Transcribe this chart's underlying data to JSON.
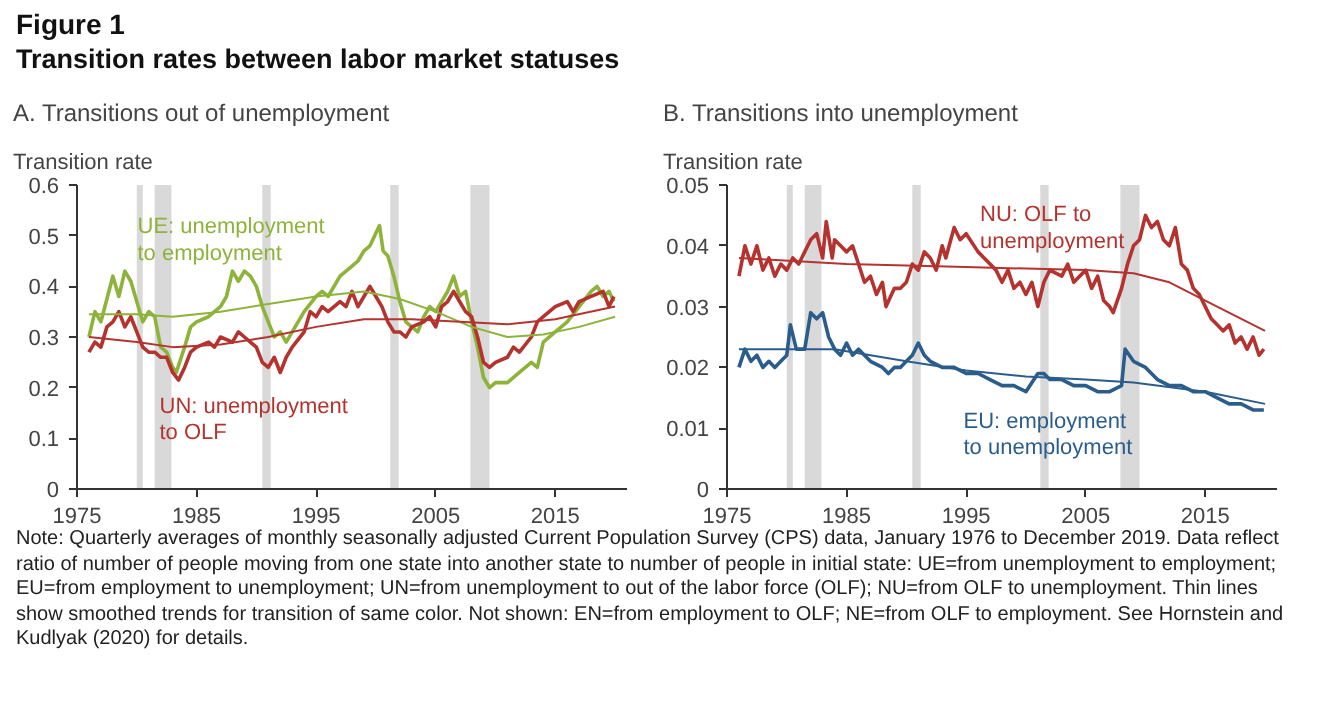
{
  "chart_data": [
    {
      "type": "line",
      "title": "A. Transitions out of unemployment",
      "ylabel": "Transition rate",
      "xlim": [
        1975,
        2021
      ],
      "xticks": [
        1975,
        1985,
        1995,
        2005,
        2015
      ],
      "ylim": [
        0,
        0.6
      ],
      "yticks": [
        0,
        0.1,
        0.2,
        0.3,
        0.4,
        0.5,
        0.6
      ],
      "grid": false,
      "legend": false,
      "annotations": [
        "Figure 1",
        "Transition rates between labor market statuses",
        "Note: Quarterly averages of monthly seasonally adjusted Current Population Survey (CPS) data, January 1976 to December 2019. Data reflect ratio of number of people moving from one state into another state to number of people in initial state: UE=from unemployment to employment; EU=from employment to unemployment; UN=from unemployment to out of the labor force (OLF); NU=from OLF to unemployment. Thin lines show smoothed trends for transition of same color. Not shown: EN=from employment to OLF; NE=from OLF to employment. See Hornstein and Kudlyak (2020) for details."
      ],
      "bands": [
        {
          "axis": "x",
          "from": 1980.0,
          "to": 1980.5,
          "color": "#d9d9d9"
        },
        {
          "axis": "x",
          "from": 1981.5,
          "to": 1982.9,
          "color": "#d9d9d9"
        },
        {
          "axis": "x",
          "from": 1990.5,
          "to": 1991.2,
          "color": "#d9d9d9"
        },
        {
          "axis": "x",
          "from": 2001.2,
          "to": 2001.9,
          "color": "#d9d9d9"
        },
        {
          "axis": "x",
          "from": 2007.9,
          "to": 2009.5,
          "color": "#d9d9d9"
        }
      ],
      "series": [
        {
          "name": "UE: unemployment to employment",
          "color": "#8db33a",
          "x": [
            1976,
            1976.5,
            1977,
            1978,
            1978.5,
            1979,
            1979.5,
            1980,
            1980.5,
            1981,
            1981.5,
            1982,
            1982.5,
            1983,
            1983.3,
            1984,
            1984.5,
            1985,
            1986,
            1987,
            1987.5,
            1988,
            1988.5,
            1989,
            1989.5,
            1990,
            1990.5,
            1991,
            1991.5,
            1992,
            1992.5,
            1993,
            1994,
            1995,
            1995.5,
            1996,
            1997,
            1998,
            1998.5,
            1999,
            1999.5,
            2000.3,
            2000.6,
            2001,
            2001.5,
            2002,
            2002.5,
            2003,
            2003.5,
            2004,
            2004.5,
            2005,
            2005.5,
            2006,
            2006.5,
            2007,
            2007.5,
            2008,
            2008.5,
            2009,
            2009.5,
            2010,
            2011,
            2012,
            2013,
            2013.5,
            2014,
            2015,
            2016,
            2017,
            2018,
            2018.5,
            2019,
            2019.5,
            2019.9
          ],
          "values": [
            0.3,
            0.35,
            0.33,
            0.42,
            0.38,
            0.43,
            0.41,
            0.37,
            0.33,
            0.35,
            0.34,
            0.28,
            0.27,
            0.24,
            0.23,
            0.28,
            0.32,
            0.33,
            0.34,
            0.36,
            0.38,
            0.43,
            0.41,
            0.43,
            0.42,
            0.4,
            0.36,
            0.33,
            0.3,
            0.31,
            0.29,
            0.31,
            0.35,
            0.38,
            0.39,
            0.38,
            0.42,
            0.44,
            0.45,
            0.47,
            0.48,
            0.52,
            0.47,
            0.46,
            0.42,
            0.37,
            0.33,
            0.32,
            0.31,
            0.34,
            0.36,
            0.35,
            0.37,
            0.39,
            0.42,
            0.38,
            0.39,
            0.33,
            0.28,
            0.22,
            0.2,
            0.21,
            0.21,
            0.23,
            0.25,
            0.24,
            0.29,
            0.31,
            0.33,
            0.36,
            0.39,
            0.4,
            0.38,
            0.39,
            0.37
          ]
        },
        {
          "name": "UN: unemployment to OLF",
          "color": "#b5332f",
          "x": [
            1976,
            1976.5,
            1977,
            1977.5,
            1978,
            1978.5,
            1979,
            1979.5,
            1980,
            1980.5,
            1981,
            1981.5,
            1982,
            1982.5,
            1983,
            1983.5,
            1984,
            1984.5,
            1985,
            1986,
            1986.5,
            1987,
            1988,
            1988.5,
            1989,
            1989.5,
            1990,
            1990.5,
            1991,
            1991.5,
            1992,
            1992.5,
            1993,
            1994,
            1994.5,
            1995,
            1995.5,
            1996,
            1997,
            1997.5,
            1998,
            1998.5,
            1999,
            1999.5,
            2000,
            2000.5,
            2001,
            2001.5,
            2002,
            2002.5,
            2003,
            2004,
            2004.5,
            2005,
            2005.5,
            2006,
            2006.5,
            2007,
            2007.5,
            2008,
            2008.5,
            2009,
            2009.5,
            2010,
            2011,
            2011.5,
            2012,
            2013,
            2013.5,
            2014,
            2015,
            2016,
            2016.5,
            2017,
            2018,
            2019,
            2019.5,
            2019.9
          ],
          "values": [
            0.27,
            0.29,
            0.28,
            0.32,
            0.33,
            0.35,
            0.32,
            0.34,
            0.31,
            0.28,
            0.27,
            0.27,
            0.26,
            0.26,
            0.23,
            0.215,
            0.24,
            0.27,
            0.28,
            0.29,
            0.28,
            0.3,
            0.29,
            0.31,
            0.3,
            0.29,
            0.28,
            0.25,
            0.24,
            0.26,
            0.23,
            0.26,
            0.28,
            0.31,
            0.35,
            0.34,
            0.36,
            0.35,
            0.37,
            0.36,
            0.39,
            0.36,
            0.38,
            0.4,
            0.38,
            0.36,
            0.33,
            0.31,
            0.31,
            0.3,
            0.32,
            0.33,
            0.34,
            0.32,
            0.36,
            0.37,
            0.39,
            0.37,
            0.35,
            0.34,
            0.3,
            0.25,
            0.24,
            0.25,
            0.26,
            0.28,
            0.27,
            0.3,
            0.33,
            0.34,
            0.36,
            0.37,
            0.35,
            0.37,
            0.38,
            0.39,
            0.36,
            0.38
          ]
        },
        {
          "color": "#8db33a",
          "x": [
            1976,
            1980,
            1983,
            1987,
            1991,
            1995,
            1999,
            2002,
            2005,
            2008,
            2011,
            2014,
            2017,
            2020
          ],
          "values": [
            0.345,
            0.345,
            0.34,
            0.35,
            0.365,
            0.38,
            0.39,
            0.375,
            0.35,
            0.32,
            0.3,
            0.305,
            0.32,
            0.34
          ]
        },
        {
          "color": "#b5332f",
          "x": [
            1976,
            1980,
            1983,
            1987,
            1991,
            1995,
            1999,
            2003,
            2007,
            2011,
            2015,
            2020
          ],
          "values": [
            0.3,
            0.29,
            0.28,
            0.285,
            0.3,
            0.32,
            0.335,
            0.335,
            0.33,
            0.325,
            0.335,
            0.36
          ]
        }
      ]
    },
    {
      "type": "line",
      "title": "B. Transitions into unemployment",
      "ylabel": "Transition rate",
      "xlim": [
        1975,
        2021
      ],
      "xticks": [
        1975,
        1985,
        1995,
        2005,
        2015
      ],
      "ylim": [
        0,
        0.05
      ],
      "yticks": [
        0,
        0.01,
        0.02,
        0.03,
        0.04,
        0.05
      ],
      "grid": false,
      "legend": false,
      "bands": [
        {
          "axis": "x",
          "from": 1980.0,
          "to": 1980.5,
          "color": "#d9d9d9"
        },
        {
          "axis": "x",
          "from": 1981.5,
          "to": 1982.9,
          "color": "#d9d9d9"
        },
        {
          "axis": "x",
          "from": 1990.5,
          "to": 1991.2,
          "color": "#d9d9d9"
        },
        {
          "axis": "x",
          "from": 2001.2,
          "to": 2001.9,
          "color": "#d9d9d9"
        },
        {
          "axis": "x",
          "from": 2007.9,
          "to": 2009.5,
          "color": "#d9d9d9"
        }
      ],
      "series": [
        {
          "name": "NU: OLF to unemployment",
          "color": "#b5332f",
          "x": [
            1976,
            1976.5,
            1977,
            1977.5,
            1978,
            1978.5,
            1979,
            1979.5,
            1980,
            1980.5,
            1981,
            1981.5,
            1982,
            1982.5,
            1983,
            1983.3,
            1983.8,
            1984,
            1984.5,
            1985,
            1985.5,
            1986,
            1986.5,
            1987,
            1987.5,
            1988,
            1988.3,
            1989,
            1989.5,
            1990,
            1990.5,
            1991,
            1991.5,
            1992,
            1992.5,
            1993,
            1993.3,
            1994,
            1994.5,
            1995,
            1996,
            1996.5,
            1997,
            1997.5,
            1998,
            1998.5,
            1999,
            1999.5,
            2000,
            2000.5,
            2001,
            2001.5,
            2002,
            2003,
            2003.5,
            2004,
            2005,
            2005.5,
            2006,
            2006.5,
            2007,
            2007.3,
            2008,
            2008.5,
            2009,
            2009.5,
            2010,
            2010.5,
            2011,
            2011.5,
            2012,
            2012.5,
            2013,
            2013.5,
            2014,
            2014.5,
            2015,
            2015.5,
            2016,
            2016.5,
            2017,
            2017.5,
            2018,
            2018.5,
            2019,
            2019.5,
            2019.9
          ],
          "values": [
            0.035,
            0.04,
            0.037,
            0.04,
            0.036,
            0.038,
            0.035,
            0.037,
            0.036,
            0.038,
            0.037,
            0.039,
            0.041,
            0.042,
            0.038,
            0.044,
            0.038,
            0.041,
            0.04,
            0.039,
            0.04,
            0.037,
            0.034,
            0.035,
            0.032,
            0.034,
            0.03,
            0.033,
            0.033,
            0.034,
            0.037,
            0.036,
            0.039,
            0.038,
            0.036,
            0.04,
            0.038,
            0.043,
            0.041,
            0.042,
            0.039,
            0.038,
            0.037,
            0.036,
            0.034,
            0.036,
            0.033,
            0.034,
            0.032,
            0.034,
            0.03,
            0.034,
            0.036,
            0.035,
            0.037,
            0.034,
            0.036,
            0.033,
            0.035,
            0.031,
            0.03,
            0.029,
            0.033,
            0.037,
            0.04,
            0.041,
            0.045,
            0.043,
            0.044,
            0.041,
            0.04,
            0.043,
            0.037,
            0.036,
            0.033,
            0.032,
            0.03,
            0.028,
            0.027,
            0.026,
            0.027,
            0.024,
            0.025,
            0.023,
            0.025,
            0.022,
            0.023
          ]
        },
        {
          "name": "EU: employment to unemployment",
          "color": "#2b5d8c",
          "x": [
            1976,
            1976.5,
            1977,
            1977.5,
            1978,
            1978.5,
            1979,
            1979.5,
            1980,
            1980.3,
            1980.8,
            1981.5,
            1982,
            1982.5,
            1983,
            1983.5,
            1984,
            1984.5,
            1985,
            1985.5,
            1986,
            1986.5,
            1987,
            1988,
            1988.5,
            1989,
            1989.5,
            1990,
            1990.5,
            1991,
            1991.5,
            1992,
            1993,
            1994,
            1995,
            1996,
            1997,
            1998,
            1999,
            2000,
            2001,
            2001.5,
            2002,
            2003,
            2004,
            2005,
            2006,
            2007,
            2008,
            2008.3,
            2009,
            2010,
            2011,
            2012,
            2013,
            2014,
            2015,
            2016,
            2017,
            2018,
            2019,
            2019.9
          ],
          "values": [
            0.02,
            0.023,
            0.021,
            0.022,
            0.02,
            0.021,
            0.02,
            0.021,
            0.022,
            0.027,
            0.023,
            0.023,
            0.029,
            0.028,
            0.029,
            0.025,
            0.023,
            0.022,
            0.024,
            0.022,
            0.023,
            0.022,
            0.021,
            0.02,
            0.019,
            0.02,
            0.02,
            0.021,
            0.022,
            0.024,
            0.022,
            0.021,
            0.02,
            0.02,
            0.019,
            0.019,
            0.018,
            0.017,
            0.017,
            0.016,
            0.019,
            0.019,
            0.018,
            0.018,
            0.017,
            0.017,
            0.016,
            0.016,
            0.017,
            0.023,
            0.021,
            0.02,
            0.018,
            0.017,
            0.017,
            0.016,
            0.016,
            0.015,
            0.014,
            0.014,
            0.013,
            0.013
          ]
        },
        {
          "color": "#b5332f",
          "x": [
            1976,
            1985,
            1995,
            2005,
            2009,
            2012,
            2015,
            2020
          ],
          "values": [
            0.038,
            0.037,
            0.0365,
            0.036,
            0.0355,
            0.034,
            0.031,
            0.026
          ]
        },
        {
          "color": "#2b5d8c",
          "x": [
            1976,
            1984,
            1990,
            1995,
            2000,
            2005,
            2009,
            2015,
            2020
          ],
          "values": [
            0.023,
            0.023,
            0.021,
            0.0195,
            0.0185,
            0.018,
            0.0175,
            0.016,
            0.014
          ]
        }
      ]
    }
  ]
}
